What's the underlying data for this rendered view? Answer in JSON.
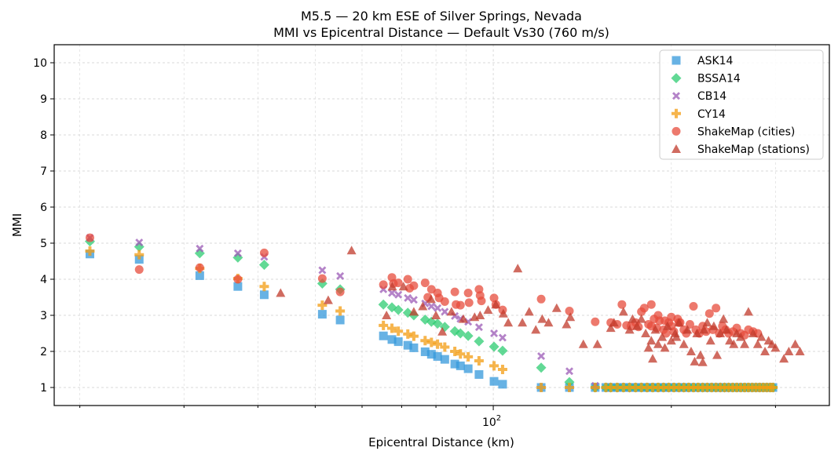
{
  "chart_data": {
    "type": "scatter",
    "title": "M5.5 — 20 km ESE of Silver Springs, Nevada",
    "subtitle": "MMI vs Epicentral Distance — Default Vs30 (760 m/s)",
    "xlabel": "Epicentral Distance (km)",
    "ylabel": "MMI",
    "xscale": "log",
    "xlim": [
      18.1,
      370
    ],
    "ylim": [
      0.5,
      10.5
    ],
    "xticks": [
      {
        "value": 100,
        "label": "10",
        "exp": "2"
      }
    ],
    "xminor": [
      20,
      30,
      40,
      50,
      60,
      70,
      80,
      90,
      200,
      300
    ],
    "yticks": [
      1,
      2,
      3,
      4,
      5,
      6,
      7,
      8,
      9,
      10
    ],
    "grid": true,
    "legend_position": "top-right",
    "series": [
      {
        "name": "ASK14",
        "marker": "square",
        "color": "#3498db",
        "x": [
          20.8,
          25.2,
          31.9,
          37.0,
          41.0,
          51.4,
          55.1,
          65.2,
          67.4,
          69.1,
          71.7,
          73.4,
          76.7,
          78.6,
          80.5,
          82.8,
          86.1,
          88.0,
          90.7,
          94.6,
          100.3,
          103.7,
          120.5,
          134.5,
          148.7,
          155,
          158,
          162,
          166,
          170,
          174,
          178,
          182,
          186,
          190,
          194,
          198,
          202,
          206,
          210,
          214,
          218,
          222,
          226,
          230,
          234,
          238,
          242,
          246,
          250,
          254,
          258,
          262,
          266,
          270,
          274,
          278,
          282,
          286,
          290,
          294,
          297
        ],
        "y": [
          4.7,
          4.55,
          4.1,
          3.8,
          3.57,
          3.03,
          2.87,
          2.43,
          2.33,
          2.27,
          2.17,
          2.1,
          1.99,
          1.92,
          1.86,
          1.78,
          1.65,
          1.6,
          1.52,
          1.36,
          1.17,
          1.09,
          1.0,
          1.0,
          1.0,
          1,
          1,
          1,
          1,
          1,
          1,
          1,
          1,
          1,
          1,
          1,
          1,
          1,
          1,
          1,
          1,
          1,
          1,
          1,
          1,
          1,
          1,
          1,
          1,
          1,
          1,
          1,
          1,
          1,
          1,
          1,
          1,
          1,
          1,
          1,
          1,
          1
        ]
      },
      {
        "name": "BSSA14",
        "marker": "diamond",
        "color": "#2ecc71",
        "x": [
          20.8,
          25.2,
          31.9,
          37.0,
          41.0,
          51.4,
          55.1,
          65.2,
          67.4,
          69.1,
          71.7,
          73.4,
          76.7,
          78.6,
          80.5,
          82.8,
          86.1,
          88.0,
          90.7,
          94.6,
          100.3,
          103.7,
          120.5,
          134.5,
          148.7,
          155,
          158,
          162,
          166,
          170,
          174,
          178,
          182,
          186,
          190,
          194,
          198,
          202,
          206,
          210,
          214,
          218,
          222,
          226,
          230,
          234,
          238,
          242,
          246,
          250,
          254,
          258,
          262,
          266,
          270,
          274,
          278,
          282,
          286,
          290,
          294,
          297
        ],
        "y": [
          5.05,
          4.9,
          4.72,
          4.6,
          4.4,
          3.88,
          3.72,
          3.3,
          3.22,
          3.15,
          3.07,
          3.0,
          2.88,
          2.82,
          2.77,
          2.68,
          2.56,
          2.5,
          2.43,
          2.28,
          2.13,
          2.02,
          1.55,
          1.15,
          1.0,
          1,
          1,
          1,
          1,
          1,
          1,
          1,
          1,
          1,
          1,
          1,
          1,
          1,
          1,
          1,
          1,
          1,
          1,
          1,
          1,
          1,
          1,
          1,
          1,
          1,
          1,
          1,
          1,
          1,
          1,
          1,
          1,
          1,
          1,
          1,
          1,
          1
        ]
      },
      {
        "name": "CB14",
        "marker": "x",
        "color": "#9b59b6",
        "x": [
          20.8,
          25.2,
          31.9,
          37.0,
          41.0,
          51.4,
          55.1,
          65.2,
          67.4,
          69.1,
          71.7,
          73.4,
          76.7,
          78.6,
          80.5,
          82.8,
          86.1,
          88.0,
          90.7,
          94.6,
          100.3,
          103.7,
          120.5,
          134.5,
          148.7
        ],
        "y": [
          5.15,
          5.02,
          4.85,
          4.72,
          4.62,
          4.25,
          4.09,
          3.72,
          3.62,
          3.57,
          3.48,
          3.43,
          3.33,
          3.25,
          3.2,
          3.1,
          2.98,
          2.9,
          2.82,
          2.67,
          2.5,
          2.38,
          1.87,
          1.45,
          1.05
        ]
      },
      {
        "name": "CY14",
        "marker": "plus",
        "color": "#f39c12",
        "x": [
          20.8,
          25.2,
          31.9,
          37.0,
          41.0,
          51.4,
          55.1,
          65.2,
          67.4,
          69.1,
          71.7,
          73.4,
          76.7,
          78.6,
          80.5,
          82.8,
          86.1,
          88.0,
          90.7,
          94.6,
          100.3,
          103.7,
          120.5,
          134.5,
          148.7,
          155,
          158,
          162,
          166,
          170,
          174,
          178,
          182,
          186,
          190,
          194,
          198,
          202,
          206,
          210,
          214,
          218,
          222,
          226,
          230,
          234,
          238,
          242,
          246,
          250,
          254,
          258,
          262,
          266,
          270,
          274,
          278,
          282,
          286,
          290,
          294,
          297
        ],
        "y": [
          4.78,
          4.68,
          4.3,
          4.02,
          3.8,
          3.28,
          3.12,
          2.72,
          2.64,
          2.56,
          2.48,
          2.42,
          2.3,
          2.25,
          2.2,
          2.12,
          2.0,
          1.93,
          1.85,
          1.74,
          1.6,
          1.5,
          1.0,
          1.0,
          1.0,
          1,
          1,
          1,
          1,
          1,
          1,
          1,
          1,
          1,
          1,
          1,
          1,
          1,
          1,
          1,
          1,
          1,
          1,
          1,
          1,
          1,
          1,
          1,
          1,
          1,
          1,
          1,
          1,
          1,
          1,
          1,
          1,
          1,
          1,
          1,
          1,
          1
        ]
      },
      {
        "name": "ShakeMap (cities)",
        "marker": "circle",
        "color": "#e74c3c",
        "x": [
          20.8,
          25.2,
          31.9,
          37.0,
          41.0,
          51.4,
          55.1,
          65.2,
          67.4,
          67.8,
          69.1,
          71.7,
          72.2,
          73.4,
          76.7,
          77.5,
          78.6,
          80.5,
          81,
          82.8,
          86.1,
          86.5,
          88.0,
          90.7,
          91,
          94.6,
          95,
          95.5,
          100.3,
          101,
          103.7,
          120.5,
          134.5,
          148.7,
          158,
          162,
          165,
          168,
          171,
          174,
          176,
          178,
          180,
          183,
          185,
          185,
          187,
          189,
          190,
          191,
          194,
          195,
          196,
          198,
          200,
          200,
          202,
          205,
          206,
          207,
          210,
          212,
          215,
          218,
          220,
          223,
          226,
          229,
          232,
          235,
          238,
          241,
          244,
          247,
          250,
          254,
          258,
          262,
          266,
          270,
          275,
          280
        ],
        "y": [
          5.15,
          4.27,
          4.32,
          4.0,
          4.73,
          4.02,
          3.65,
          3.85,
          4.05,
          3.88,
          3.9,
          4.0,
          3.75,
          3.82,
          3.9,
          3.5,
          3.72,
          3.62,
          3.48,
          3.38,
          3.65,
          3.3,
          3.28,
          3.62,
          3.35,
          3.72,
          3.55,
          3.4,
          3.48,
          3.3,
          3.15,
          3.45,
          3.12,
          2.82,
          2.8,
          2.75,
          3.3,
          2.72,
          2.7,
          2.8,
          2.68,
          3.1,
          3.2,
          2.75,
          2.7,
          3.3,
          2.9,
          2.65,
          3.0,
          2.85,
          2.6,
          2.85,
          2.5,
          2.8,
          2.7,
          2.95,
          2.55,
          2.9,
          2.8,
          2.8,
          2.6,
          2.5,
          2.75,
          3.25,
          2.6,
          2.5,
          2.7,
          2.55,
          3.05,
          2.6,
          3.2,
          2.5,
          2.7,
          2.6,
          2.5,
          2.55,
          2.65,
          2.5,
          2.45,
          2.6,
          2.55,
          2.5
        ]
      },
      {
        "name": "ShakeMap (stations)",
        "marker": "triangle",
        "color": "#c0392b",
        "x": [
          43.7,
          52.6,
          57.6,
          66.0,
          67.5,
          70.5,
          73.4,
          76,
          78.5,
          80,
          82,
          85,
          89,
          93,
          95,
          98,
          101,
          104,
          106,
          110,
          112,
          115,
          118,
          121,
          124,
          128,
          133,
          135,
          142,
          150,
          158,
          160,
          166,
          170,
          172,
          175,
          178,
          181,
          183,
          185,
          186,
          188,
          190,
          193,
          195,
          197,
          200,
          203,
          204,
          206,
          210,
          213,
          216,
          219,
          221,
          224,
          226,
          227,
          230,
          233,
          236,
          239,
          242,
          245,
          248,
          251,
          255,
          258,
          262,
          266,
          270,
          275,
          280,
          284,
          288,
          292,
          296,
          300,
          310,
          316,
          324,
          330
        ],
        "y": [
          3.62,
          3.42,
          4.8,
          3.0,
          3.8,
          3.8,
          3.1,
          3.25,
          3.45,
          3.0,
          2.55,
          3.1,
          2.9,
          2.95,
          3.0,
          3.15,
          3.3,
          3.05,
          2.8,
          4.3,
          2.8,
          3.1,
          2.6,
          2.9,
          2.8,
          3.2,
          2.75,
          2.95,
          2.2,
          2.2,
          2.65,
          2.8,
          3.1,
          2.6,
          2.9,
          2.7,
          2.9,
          2.5,
          2.1,
          2.3,
          1.8,
          2.6,
          2.2,
          2.4,
          2.1,
          2.7,
          2.3,
          2.5,
          2.4,
          2.8,
          2.2,
          2.6,
          2.0,
          1.72,
          2.5,
          1.9,
          1.7,
          2.6,
          2.8,
          2.3,
          2.7,
          1.9,
          2.5,
          2.9,
          2.6,
          2.3,
          2.2,
          2.5,
          2.4,
          2.2,
          3.1,
          2.5,
          2.2,
          2.4,
          2.0,
          2.3,
          2.2,
          2.1,
          1.8,
          2.0,
          2.2,
          2.0
        ]
      }
    ]
  }
}
